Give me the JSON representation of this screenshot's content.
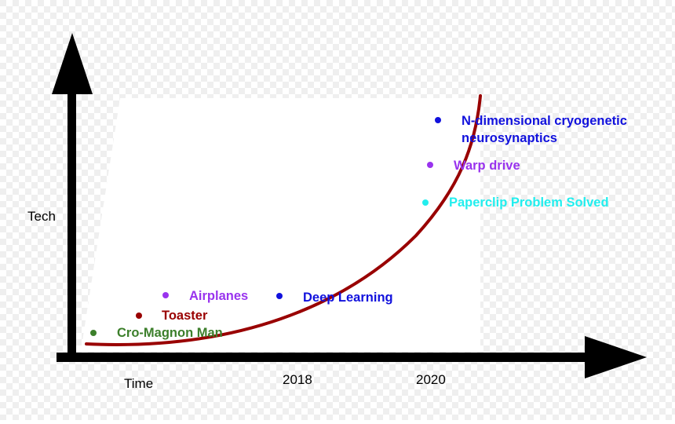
{
  "axes": {
    "y_label": "Tech",
    "x_label": "Time",
    "x_ticks": [
      "2018",
      "2020"
    ]
  },
  "events": [
    {
      "label": "Cro-Magnon Man",
      "color": "#3c7f2b"
    },
    {
      "label": "Toaster",
      "color": "#990000"
    },
    {
      "label": "Airplanes",
      "color": "#9933ee"
    },
    {
      "label": "Deep Learning",
      "color": "#1111dd"
    },
    {
      "label": "Paperclip Problem Solved",
      "color": "#22eeee"
    },
    {
      "label": "Warp drive",
      "color": "#9933ee"
    },
    {
      "label": "N-dimensional cryogenetic",
      "label_line2": "neurosynaptics",
      "color": "#1111dd"
    }
  ],
  "colors": {
    "background_checker_light": "#ffffff",
    "background_checker_dark": "#efefef",
    "axes": "#000000",
    "curve": "#990000"
  }
}
